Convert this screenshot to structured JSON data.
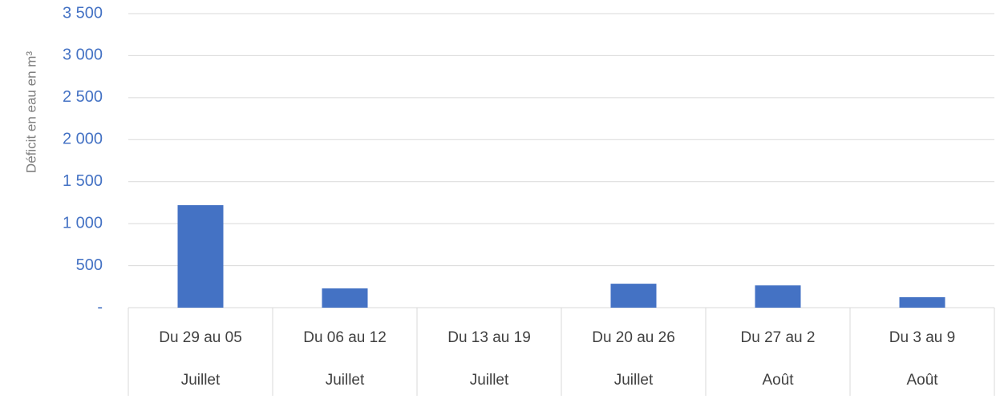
{
  "chart_data": {
    "type": "bar",
    "y_axis_label": "Déficit en eau en m³",
    "categories": [
      "Du 29 au 05",
      "Du 06 au 12",
      "Du 13 au 19",
      "Du 20 au 26",
      "Du 27 au 2",
      "Du 3 au 9"
    ],
    "category_groups": [
      "Juillet",
      "Juillet",
      "Juillet",
      "Juillet",
      "Août",
      "Août"
    ],
    "values": [
      1220,
      230,
      0,
      285,
      265,
      125
    ],
    "color": "#4472c4",
    "ylim": [
      0,
      3500
    ],
    "yticks": [
      {
        "value": 0,
        "label": "-"
      },
      500,
      {
        "value": 1000,
        "label": "1 000"
      },
      {
        "value": 1500,
        "label": "1 500"
      },
      {
        "value": 2000,
        "label": "2 000"
      },
      {
        "value": 2500,
        "label": "2 500"
      },
      {
        "value": 3000,
        "label": "3 000"
      },
      {
        "value": 3500,
        "label": "3 500"
      }
    ],
    "grid": true
  }
}
